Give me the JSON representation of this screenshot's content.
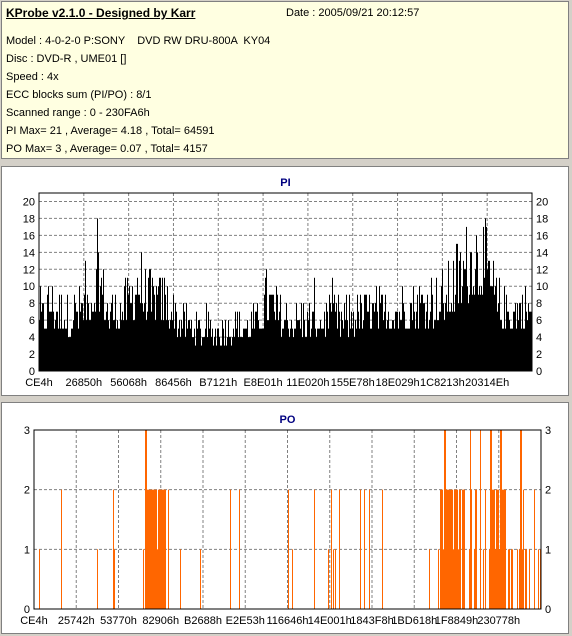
{
  "header": {
    "title": "KProbe v2.1.0 - Designed by Karr",
    "date": "Date : 2005/09/21 20:12:57",
    "lines": [
      "Model : 4-0-2-0 P:SONY    DVD RW DRU-800A  KY04",
      "Disc : DVD-R , UME01 []",
      "Speed : 4x",
      "ECC blocks sum (PI/PO) : 8/1",
      "Scanned range : 0 - 230FA6h",
      "PI Max= 21 , Average= 4.18 , Total= 64591",
      "PO Max= 3 , Average= 0.07 , Total= 4157"
    ]
  },
  "chart_data": [
    {
      "type": "bar",
      "title": "PI",
      "ylim": [
        0,
        21
      ],
      "yticks": [
        0,
        2,
        4,
        6,
        8,
        10,
        12,
        14,
        16,
        18,
        20
      ],
      "xticks": [
        "CE4h",
        "26850h",
        "56068h",
        "86456h",
        "B7121h",
        "E8E01h",
        "11E020h",
        "155E78h",
        "18E029h",
        "1C8213h",
        "20314Eh"
      ],
      "grid": true,
      "color": "#000000",
      "profile": [
        [
          0,
          8
        ],
        [
          0.02,
          12
        ],
        [
          0.06,
          9
        ],
        [
          0.1,
          12
        ],
        [
          0.12,
          16
        ],
        [
          0.14,
          10
        ],
        [
          0.18,
          11
        ],
        [
          0.2,
          16
        ],
        [
          0.22,
          12
        ],
        [
          0.26,
          12
        ],
        [
          0.28,
          9
        ],
        [
          0.32,
          7
        ],
        [
          0.36,
          7
        ],
        [
          0.4,
          8
        ],
        [
          0.44,
          8
        ],
        [
          0.46,
          12
        ],
        [
          0.5,
          9
        ],
        [
          0.56,
          9
        ],
        [
          0.62,
          9
        ],
        [
          0.66,
          10
        ],
        [
          0.7,
          10
        ],
        [
          0.74,
          11
        ],
        [
          0.78,
          12
        ],
        [
          0.82,
          12
        ],
        [
          0.84,
          15
        ],
        [
          0.86,
          17
        ],
        [
          0.88,
          20
        ],
        [
          0.9,
          19
        ],
        [
          0.92,
          14
        ],
        [
          0.94,
          10
        ],
        [
          0.96,
          10
        ],
        [
          0.98,
          11
        ],
        [
          1,
          10
        ]
      ],
      "baseline": 0.45
    },
    {
      "type": "bar",
      "title": "PO",
      "ylim": [
        0,
        3
      ],
      "yticks": [
        0,
        1,
        2,
        3
      ],
      "xticks": [
        "CE4h",
        "25742h",
        "53770h",
        "82906h",
        "B2688h",
        "E2E53h",
        "116646h",
        "14E001h",
        "1843F8h",
        "1BD618h",
        "1F8849h",
        "230778h"
      ],
      "grid": true,
      "color": "#ff6600",
      "dense_regions": [
        [
          0.22,
          0.26,
          2
        ],
        [
          0.8,
          0.84,
          2
        ],
        [
          0.9,
          0.93,
          2
        ]
      ],
      "peaks3": [
        0.22,
        0.81,
        0.86,
        0.88,
        0.9,
        0.92,
        0.96
      ]
    }
  ]
}
